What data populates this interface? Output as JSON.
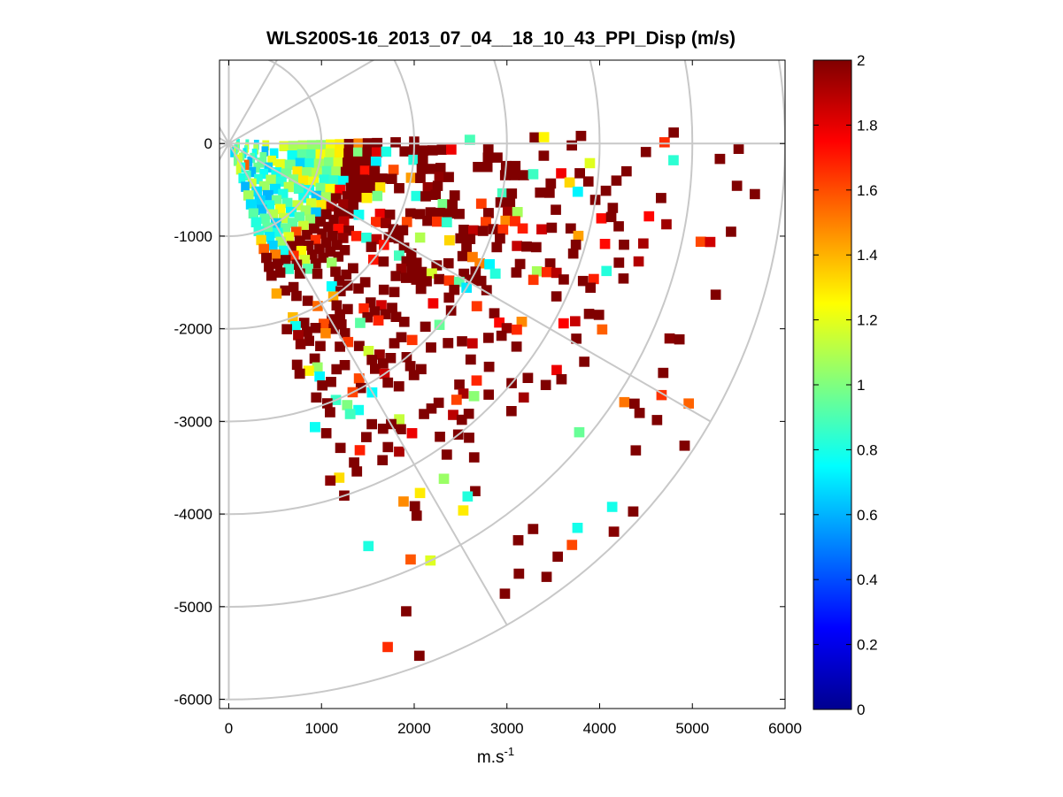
{
  "chart_data": {
    "type": "heatmap",
    "title": "WLS200S-16_2013_07_04__18_10_43_PPI_Disp (m/s)",
    "xlabel": "m.s",
    "xlabel_sup": "-1",
    "ylabel": "",
    "xlim": [
      -100,
      6000
    ],
    "ylim": [
      -6100,
      900
    ],
    "xticks": [
      0,
      1000,
      2000,
      3000,
      4000,
      5000,
      6000
    ],
    "yticks": [
      0,
      -1000,
      -2000,
      -3000,
      -4000,
      -5000,
      -6000
    ],
    "colormap": "jet",
    "colorbar": {
      "min": 0,
      "max": 2,
      "ticks": [
        0,
        0.2,
        0.4,
        0.6,
        0.8,
        1,
        1.2,
        1.4,
        1.6,
        1.8,
        2
      ]
    },
    "polar_grid": {
      "origin": [
        0,
        0
      ],
      "range_rings": [
        1000,
        2000,
        3000,
        4000,
        5000,
        6000
      ],
      "spoke_angles_deg": [
        0,
        30,
        60,
        90,
        120,
        150,
        180,
        210,
        240,
        270,
        300,
        330
      ],
      "grid_color": "#c8c8c8"
    },
    "scan_sector": {
      "azimuth_start_deg": -2,
      "azimuth_end_deg": 74,
      "range_min": 100,
      "range_max": 5900,
      "description_values": "dispersion values 0-2 m/s; low values (0.6-1.2) dominate near origin, high values (>=1.8, saturated at 2) dominate at range > 1500 m"
    }
  }
}
